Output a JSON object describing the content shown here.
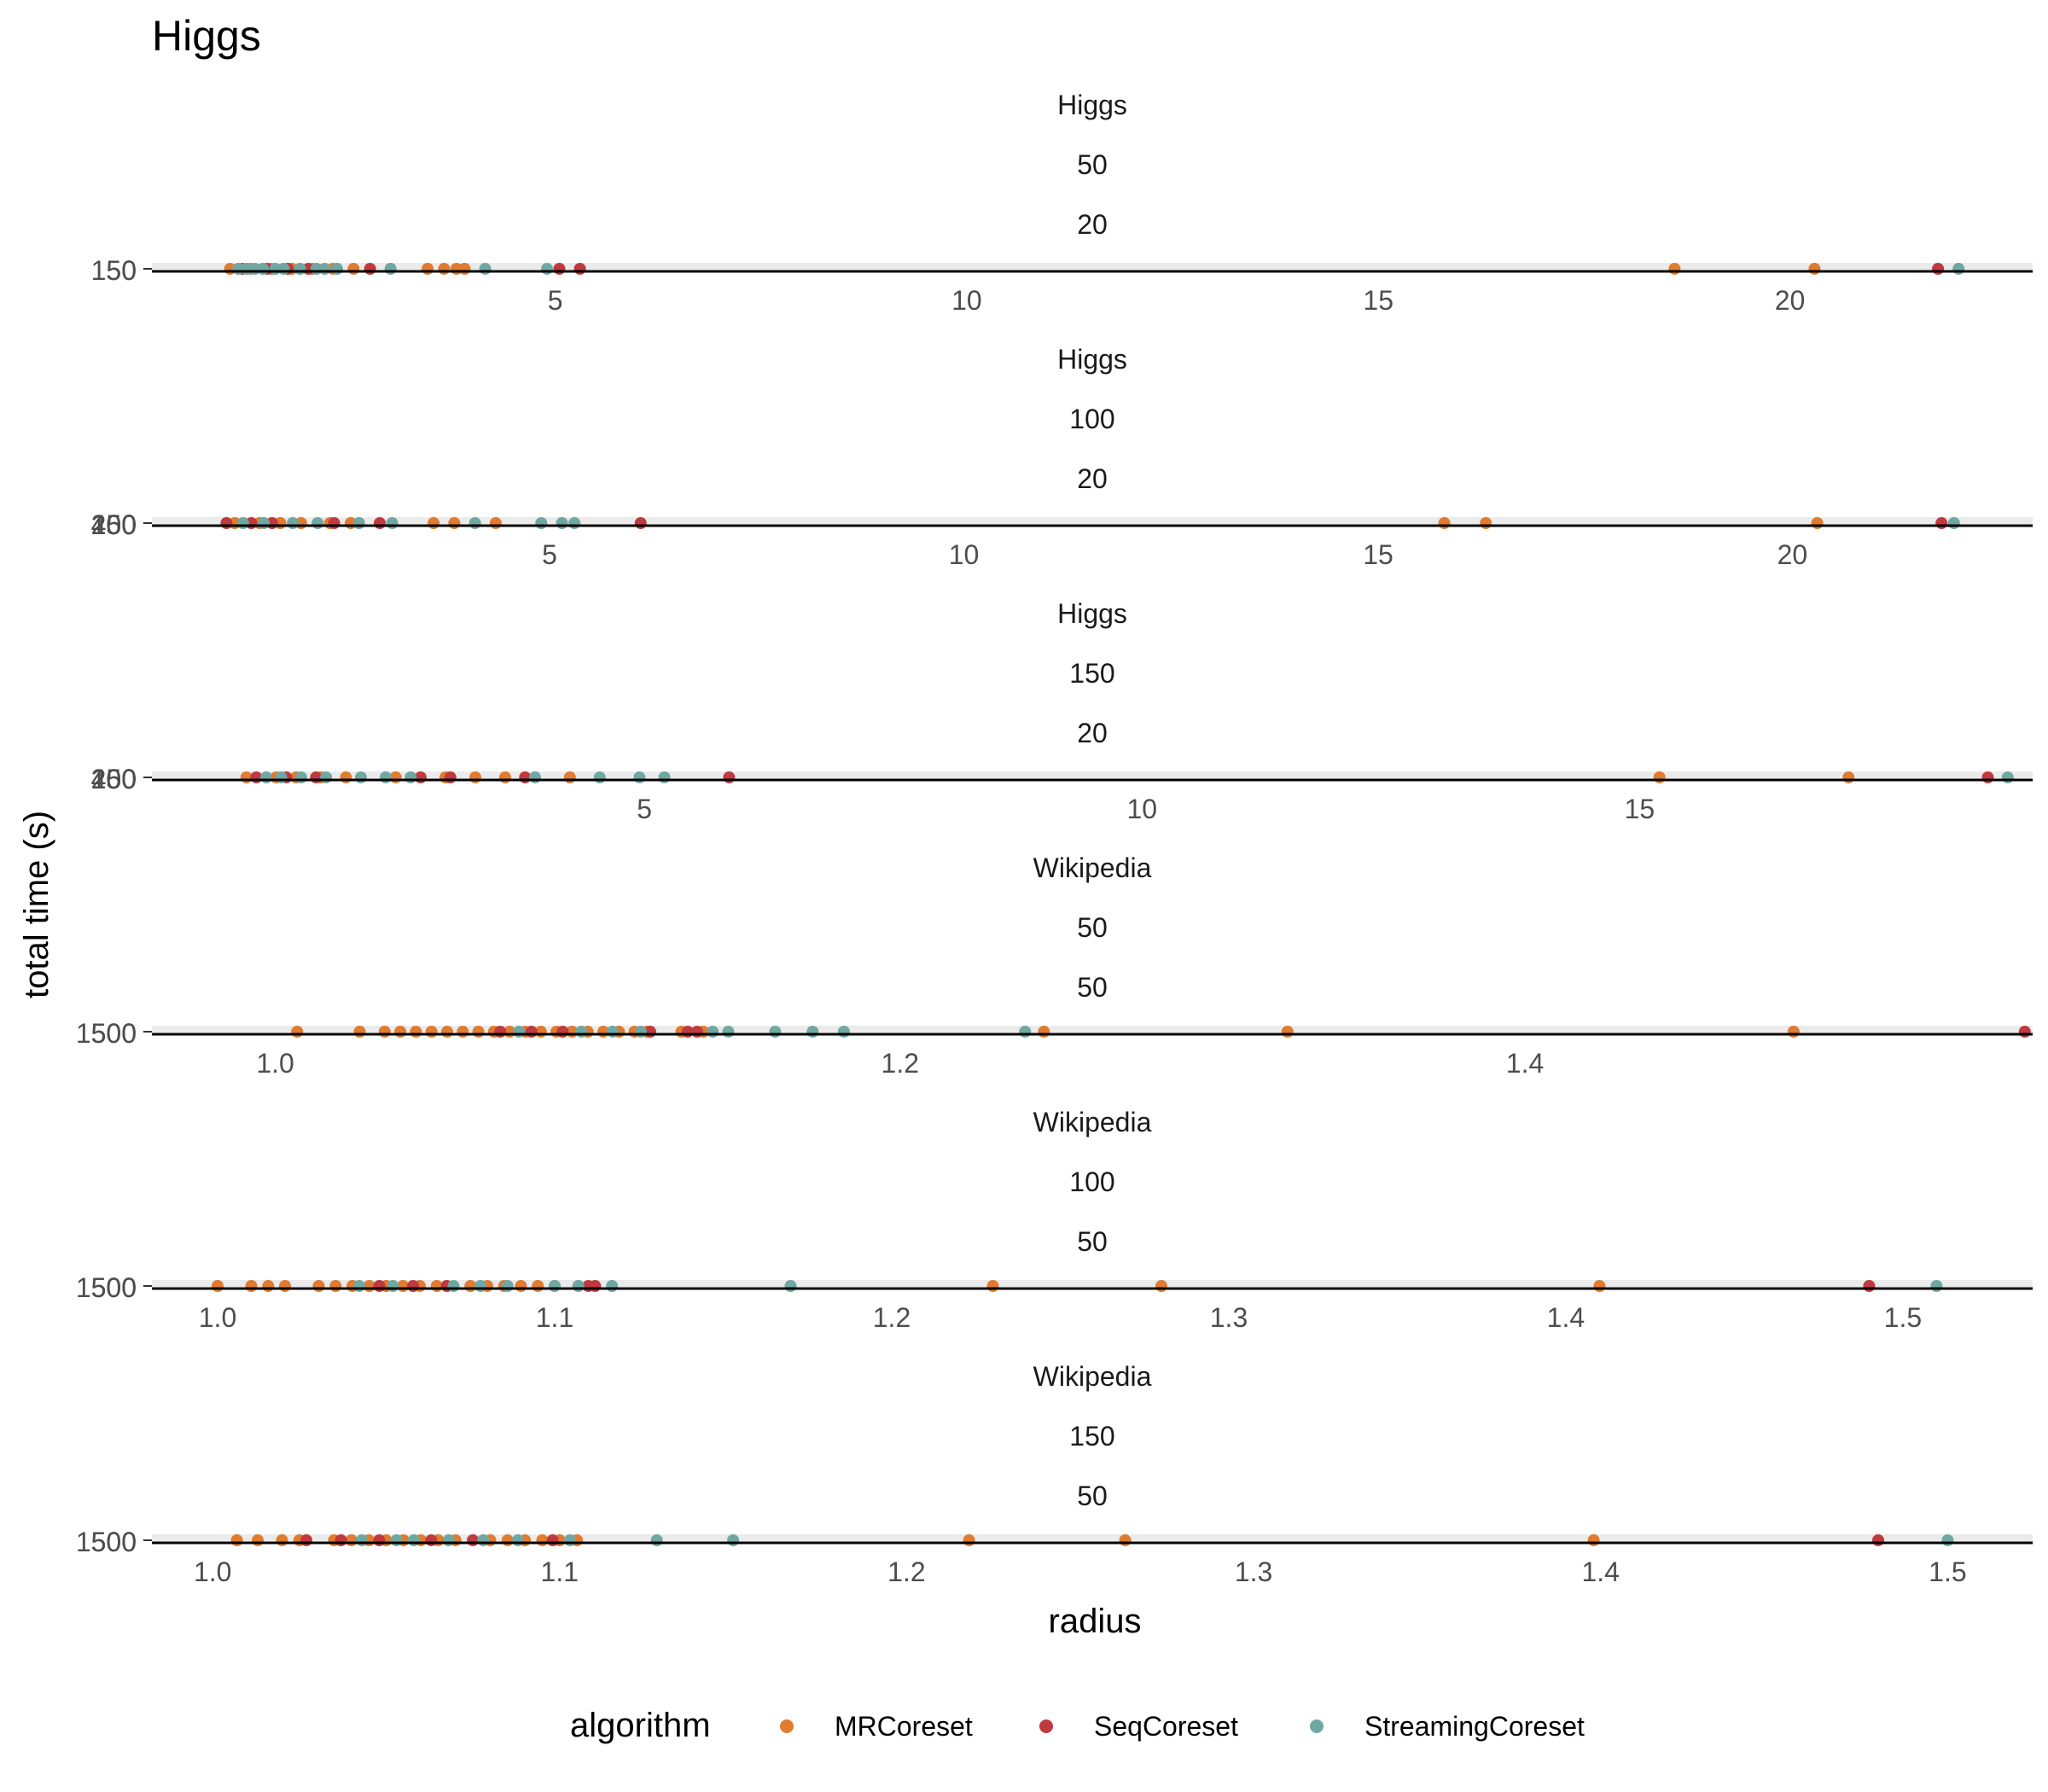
{
  "chart_data": {
    "type": "scatter",
    "title": "Higgs",
    "xlabel": "radius",
    "ylabel": "total time (s)",
    "legend": {
      "title": "algorithm",
      "position": "bottom",
      "entries": [
        {
          "name": "MRCoreset",
          "color": "#E07B2F"
        },
        {
          "name": "SeqCoreset",
          "color": "#C0393F"
        },
        {
          "name": "StreamingCoreset",
          "color": "#6FA8A3"
        }
      ]
    },
    "grid": false,
    "panels": [
      {
        "strip": [
          "Higgs",
          "50",
          "20"
        ],
        "xlim": [
          0.1,
          22.95
        ],
        "xticks": [
          5,
          10,
          15,
          20
        ],
        "ytick_labels": [
          "150",
          "50"
        ],
        "series": [
          {
            "name": "MRCoreset",
            "x": [
              1.05,
              1.3,
              1.55,
              1.8,
              2.05,
              2.3,
              2.55,
              3.45,
              3.65,
              3.8,
              3.9,
              18.6,
              20.3
            ]
          },
          {
            "name": "SeqCoreset",
            "x": [
              1.2,
              1.5,
              1.75,
              2.0,
              2.75,
              5.05,
              5.3,
              21.8
            ]
          },
          {
            "name": "StreamingCoreset",
            "x": [
              1.15,
              1.25,
              1.35,
              1.45,
              1.6,
              1.7,
              1.9,
              2.1,
              2.2,
              2.35,
              3.0,
              4.15,
              4.9,
              22.05
            ]
          }
        ]
      },
      {
        "strip": [
          "Higgs",
          "100",
          "20"
        ],
        "xlim": [
          0.2,
          22.9
        ],
        "xticks": [
          5,
          10,
          15,
          20
        ],
        "ytick_labels": [
          "400",
          "250",
          "100",
          "50"
        ],
        "series": [
          {
            "name": "MRCoreset",
            "x": [
              1.2,
              1.5,
              1.75,
              2.0,
              2.35,
              2.6,
              3.6,
              3.85,
              4.35,
              15.8,
              16.3,
              20.3
            ]
          },
          {
            "name": "SeqCoreset",
            "x": [
              1.1,
              1.4,
              1.65,
              2.4,
              2.95,
              6.1,
              21.8
            ]
          },
          {
            "name": "StreamingCoreset",
            "x": [
              1.3,
              1.55,
              1.9,
              2.2,
              2.7,
              3.1,
              4.1,
              4.9,
              5.15,
              5.3,
              21.95
            ]
          }
        ]
      },
      {
        "strip": [
          "Higgs",
          "150",
          "20"
        ],
        "xlim": [
          0.05,
          18.95
        ],
        "xticks": [
          5,
          10,
          15
        ],
        "ytick_labels": [
          "400",
          "250",
          "100",
          "50"
        ],
        "series": [
          {
            "name": "MRCoreset",
            "x": [
              1.0,
              1.3,
              1.5,
              1.75,
              2.0,
              2.5,
              3.0,
              3.3,
              3.6,
              4.25,
              15.2,
              17.1
            ]
          },
          {
            "name": "SeqCoreset",
            "x": [
              1.1,
              1.4,
              1.7,
              2.75,
              3.05,
              3.8,
              5.85,
              18.5
            ]
          },
          {
            "name": "StreamingCoreset",
            "x": [
              1.2,
              1.35,
              1.55,
              1.8,
              2.15,
              2.4,
              2.65,
              3.9,
              4.55,
              4.95,
              5.2,
              18.7
            ]
          }
        ]
      },
      {
        "strip": [
          "Wikipedia",
          "50",
          "50"
        ],
        "xlim": [
          0.9605,
          1.5625
        ],
        "xticks": [
          1.0,
          1.2,
          1.4
        ],
        "ytick_labels": [
          "1500",
          "500"
        ],
        "series": [
          {
            "name": "MRCoreset",
            "x": [
              1.007,
              1.027,
              1.035,
              1.04,
              1.045,
              1.05,
              1.055,
              1.06,
              1.065,
              1.07,
              1.075,
              1.08,
              1.085,
              1.09,
              1.095,
              1.1,
              1.105,
              1.11,
              1.115,
              1.119,
              1.13,
              1.137,
              1.246,
              1.324,
              1.486
            ]
          },
          {
            "name": "SeqCoreset",
            "x": [
              1.072,
              1.082,
              1.092,
              1.12,
              1.132,
              1.135,
              1.56
            ]
          },
          {
            "name": "StreamingCoreset",
            "x": [
              1.078,
              1.098,
              1.108,
              1.117,
              1.14,
              1.145,
              1.16,
              1.172,
              1.182,
              1.24,
              1.62
            ]
          }
        ]
      },
      {
        "strip": [
          "Wikipedia",
          "100",
          "50"
        ],
        "xlim": [
          0.9805,
          1.5385
        ],
        "xticks": [
          1.0,
          1.1,
          1.2,
          1.3,
          1.4,
          1.5
        ],
        "ytick_labels": [
          "1500",
          "500"
        ],
        "series": [
          {
            "name": "MRCoreset",
            "x": [
              1.0,
              1.01,
              1.015,
              1.02,
              1.03,
              1.035,
              1.04,
              1.045,
              1.05,
              1.055,
              1.06,
              1.065,
              1.075,
              1.08,
              1.085,
              1.09,
              1.095,
              1.1,
              1.23,
              1.28,
              1.41
            ]
          },
          {
            "name": "SeqCoreset",
            "x": [
              1.048,
              1.058,
              1.068,
              1.11,
              1.112,
              1.49
            ]
          },
          {
            "name": "StreamingCoreset",
            "x": [
              1.042,
              1.052,
              1.07,
              1.078,
              1.086,
              1.1,
              1.107,
              1.117,
              1.17,
              1.51
            ]
          }
        ]
      },
      {
        "strip": [
          "Wikipedia",
          "150",
          "50"
        ],
        "xlim": [
          0.9825,
          1.5245
        ],
        "xticks": [
          1.0,
          1.1,
          1.2,
          1.3,
          1.4,
          1.5
        ],
        "ytick_labels": [
          "1500",
          "500"
        ],
        "series": [
          {
            "name": "MRCoreset",
            "x": [
              1.007,
              1.013,
              1.02,
              1.025,
              1.035,
              1.04,
              1.045,
              1.05,
              1.055,
              1.06,
              1.065,
              1.07,
              1.08,
              1.085,
              1.09,
              1.095,
              1.1,
              1.105,
              1.218,
              1.263,
              1.398
            ]
          },
          {
            "name": "SeqCoreset",
            "x": [
              1.027,
              1.037,
              1.048,
              1.063,
              1.075,
              1.098,
              1.48
            ]
          },
          {
            "name": "StreamingCoreset",
            "x": [
              1.043,
              1.053,
              1.058,
              1.068,
              1.078,
              1.088,
              1.103,
              1.128,
              1.15,
              1.5
            ]
          }
        ]
      }
    ]
  }
}
